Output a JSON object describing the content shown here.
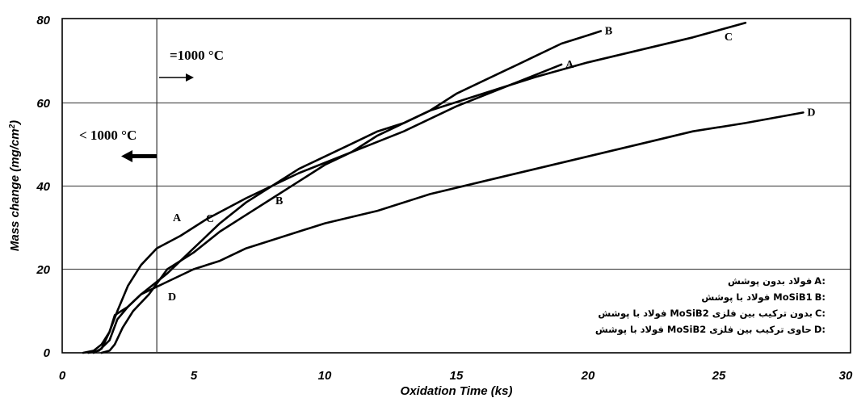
{
  "chart_data": {
    "type": "line",
    "xlabel": "Oxidation Time (ks)",
    "ylabel_main": "Mass change (mg/cm",
    "ylabel_sup": "2",
    "ylabel_end": ")",
    "xlim": [
      0,
      30
    ],
    "ylim": [
      0,
      80
    ],
    "x_ticks": [
      "0",
      "5",
      "10",
      "15",
      "20",
      "25",
      "30"
    ],
    "y_ticks": [
      "0",
      "20",
      "40",
      "60",
      "80"
    ],
    "grid": "horizontal",
    "vertical_marker_x": 3.6,
    "annotations": {
      "above": "=1000 °C",
      "below": "< 1000 °C"
    },
    "series": [
      {
        "name": "A",
        "values": [
          [
            0.8,
            0
          ],
          [
            1.2,
            0.5
          ],
          [
            1.5,
            2
          ],
          [
            1.8,
            5
          ],
          [
            2.1,
            10
          ],
          [
            2.5,
            16
          ],
          [
            3,
            21
          ],
          [
            3.6,
            25
          ],
          [
            4.5,
            28
          ],
          [
            5.5,
            32
          ],
          [
            7,
            37
          ],
          [
            9,
            43
          ],
          [
            11,
            48
          ],
          [
            13,
            53
          ],
          [
            15,
            59
          ],
          [
            17,
            64
          ],
          [
            19,
            69
          ]
        ]
      },
      {
        "name": "B",
        "values": [
          [
            1.5,
            0
          ],
          [
            1.8,
            0.5
          ],
          [
            2,
            2
          ],
          [
            2.3,
            6
          ],
          [
            2.7,
            10
          ],
          [
            3.3,
            14
          ],
          [
            4,
            20
          ],
          [
            5,
            24
          ],
          [
            6,
            29
          ],
          [
            7,
            33
          ],
          [
            8,
            37
          ],
          [
            9,
            41
          ],
          [
            10,
            45
          ],
          [
            11,
            48
          ],
          [
            12,
            52
          ],
          [
            13,
            55
          ],
          [
            14,
            58
          ],
          [
            15,
            62
          ],
          [
            16,
            65
          ],
          [
            17,
            68
          ],
          [
            18,
            71
          ],
          [
            19,
            74
          ],
          [
            20,
            76
          ],
          [
            20.5,
            77
          ]
        ]
      },
      {
        "name": "C",
        "values": [
          [
            1,
            0
          ],
          [
            1.4,
            0.5
          ],
          [
            1.8,
            3
          ],
          [
            2.1,
            8
          ],
          [
            2.5,
            11
          ],
          [
            3,
            14
          ],
          [
            4,
            19
          ],
          [
            5,
            25
          ],
          [
            6,
            31
          ],
          [
            7,
            36
          ],
          [
            8,
            40
          ],
          [
            9,
            44
          ],
          [
            10,
            47
          ],
          [
            11,
            50
          ],
          [
            12,
            53
          ],
          [
            13,
            55
          ],
          [
            14,
            58
          ],
          [
            16,
            62
          ],
          [
            18,
            66
          ],
          [
            20,
            69.5
          ],
          [
            22,
            72.5
          ],
          [
            24,
            75.5
          ],
          [
            26,
            79
          ]
        ]
      },
      {
        "name": "D",
        "values": [
          [
            1.2,
            0
          ],
          [
            1.5,
            1
          ],
          [
            1.8,
            5
          ],
          [
            2,
            9
          ],
          [
            2.5,
            11
          ],
          [
            3,
            14
          ],
          [
            4,
            17
          ],
          [
            5,
            20
          ],
          [
            6,
            22
          ],
          [
            7,
            25
          ],
          [
            8,
            27
          ],
          [
            9,
            29
          ],
          [
            10,
            31
          ],
          [
            12,
            34
          ],
          [
            14,
            38
          ],
          [
            16,
            41
          ],
          [
            18,
            44
          ],
          [
            20,
            47
          ],
          [
            22,
            50
          ],
          [
            24,
            53
          ],
          [
            26,
            55
          ],
          [
            28.2,
            57.5
          ]
        ]
      }
    ],
    "curve_label_A_mid": "A",
    "curve_label_B_mid": "B",
    "curve_label_C_mid": "C",
    "curve_label_D_mid": "D"
  },
  "legend": [
    {
      "letter": "A:",
      "text": "فولاد بدون پوشش"
    },
    {
      "letter": "B:",
      "text": "فولاد با پوشش MoSiB1"
    },
    {
      "letter": "C:",
      "text": "فولاد با پوشش MoSiB2 بدون ترکیب بین فلزی"
    },
    {
      "letter": "D:",
      "text": "فولاد با پوشش MoSiB2 حاوی ترکیب بین فلزی"
    }
  ]
}
